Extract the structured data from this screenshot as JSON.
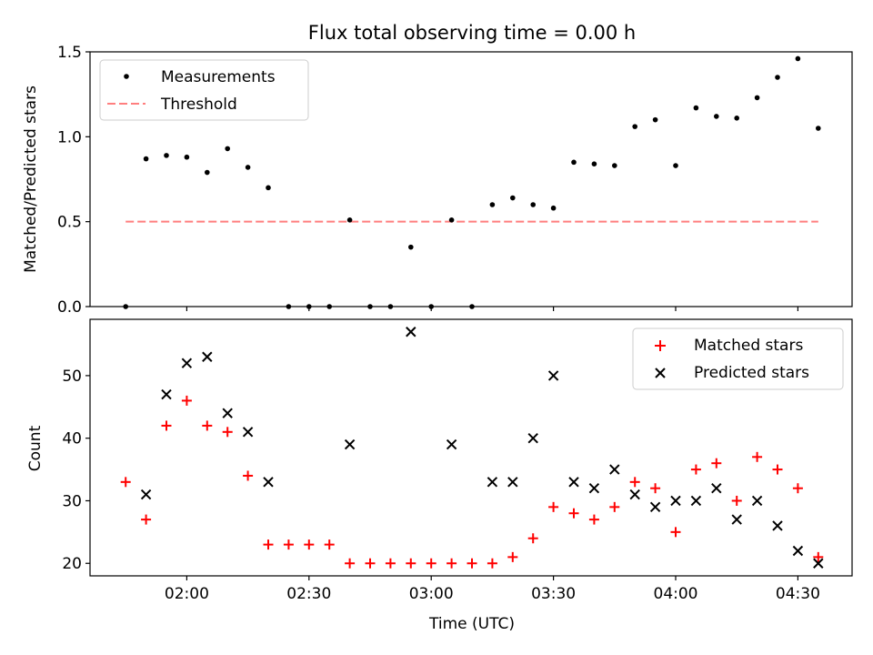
{
  "title": "Flux total observing time = 0.00 h",
  "xlabel": "Time (UTC)",
  "x_ticks": [
    "02:00",
    "02:30",
    "03:00",
    "03:30",
    "04:00",
    "04:30"
  ],
  "colors": {
    "measurements": "#000000",
    "threshold": "#ff7f7f",
    "matched": "#ff0000",
    "predicted": "#000000"
  },
  "chart_data": [
    {
      "type": "scatter",
      "ylabel": "Matched/Predicted stars",
      "ylim": [
        0,
        1.5
      ],
      "y_ticks": [
        "0.0",
        "0.5",
        "1.0",
        "1.5"
      ],
      "x": [
        "01:45",
        "01:50",
        "01:55",
        "02:00",
        "02:05",
        "02:10",
        "02:15",
        "02:20",
        "02:25",
        "02:30",
        "02:35",
        "02:40",
        "02:45",
        "02:50",
        "02:55",
        "03:00",
        "03:05",
        "03:10",
        "03:15",
        "03:20",
        "03:25",
        "03:30",
        "03:35",
        "03:40",
        "03:45",
        "03:50",
        "03:55",
        "04:00",
        "04:05",
        "04:10",
        "04:15",
        "04:20",
        "04:25",
        "04:30",
        "04:35"
      ],
      "series": [
        {
          "name": "Measurements",
          "values": [
            0.0,
            0.87,
            0.89,
            0.88,
            0.79,
            0.93,
            0.82,
            0.7,
            0.0,
            0.0,
            0.0,
            0.51,
            0.0,
            0.0,
            0.35,
            0.0,
            0.51,
            0.0,
            0.6,
            0.64,
            0.6,
            0.58,
            0.85,
            0.84,
            0.83,
            1.06,
            1.1,
            0.83,
            1.17,
            1.12,
            1.11,
            1.23,
            1.35,
            1.46,
            1.05
          ]
        },
        {
          "name": "Threshold",
          "type": "line",
          "dashed": true,
          "x": [
            "01:45",
            "04:35"
          ],
          "values": [
            0.5,
            0.5
          ]
        }
      ],
      "legend": "upper-left"
    },
    {
      "type": "scatter",
      "ylabel": "Count",
      "ylim": [
        18,
        59
      ],
      "y_ticks": [
        "20",
        "30",
        "40",
        "50"
      ],
      "series": [
        {
          "name": "Matched stars",
          "marker": "plus",
          "x": [
            "01:45",
            "01:50",
            "01:55",
            "02:00",
            "02:05",
            "02:10",
            "02:15",
            "02:20",
            "02:25",
            "02:30",
            "02:35",
            "02:40",
            "02:45",
            "02:50",
            "02:55",
            "03:00",
            "03:05",
            "03:10",
            "03:15",
            "03:20",
            "03:25",
            "03:30",
            "03:35",
            "03:40",
            "03:45",
            "03:50",
            "03:55",
            "04:00",
            "04:05",
            "04:10",
            "04:15",
            "04:20",
            "04:25",
            "04:30",
            "04:35"
          ],
          "values": [
            33,
            27,
            42,
            46,
            42,
            41,
            34,
            23,
            23,
            23,
            23,
            20,
            20,
            20,
            20,
            20,
            20,
            20,
            20,
            21,
            24,
            29,
            28,
            27,
            29,
            33,
            32,
            25,
            35,
            36,
            30,
            37,
            35,
            32,
            21
          ]
        },
        {
          "name": "Predicted stars",
          "marker": "x",
          "x": [
            "01:50",
            "01:55",
            "02:00",
            "02:05",
            "02:10",
            "02:15",
            "02:20",
            "02:40",
            "02:55",
            "03:05",
            "03:15",
            "03:20",
            "03:25",
            "03:30",
            "03:35",
            "03:40",
            "03:45",
            "03:50",
            "03:55",
            "04:00",
            "04:05",
            "04:10",
            "04:15",
            "04:20",
            "04:25",
            "04:30",
            "04:35"
          ],
          "values": [
            31,
            47,
            52,
            53,
            44,
            41,
            33,
            39,
            57,
            39,
            33,
            33,
            40,
            50,
            33,
            32,
            35,
            31,
            29,
            30,
            30,
            32,
            27,
            30,
            26,
            22,
            20
          ]
        }
      ],
      "legend": "upper-right"
    }
  ]
}
